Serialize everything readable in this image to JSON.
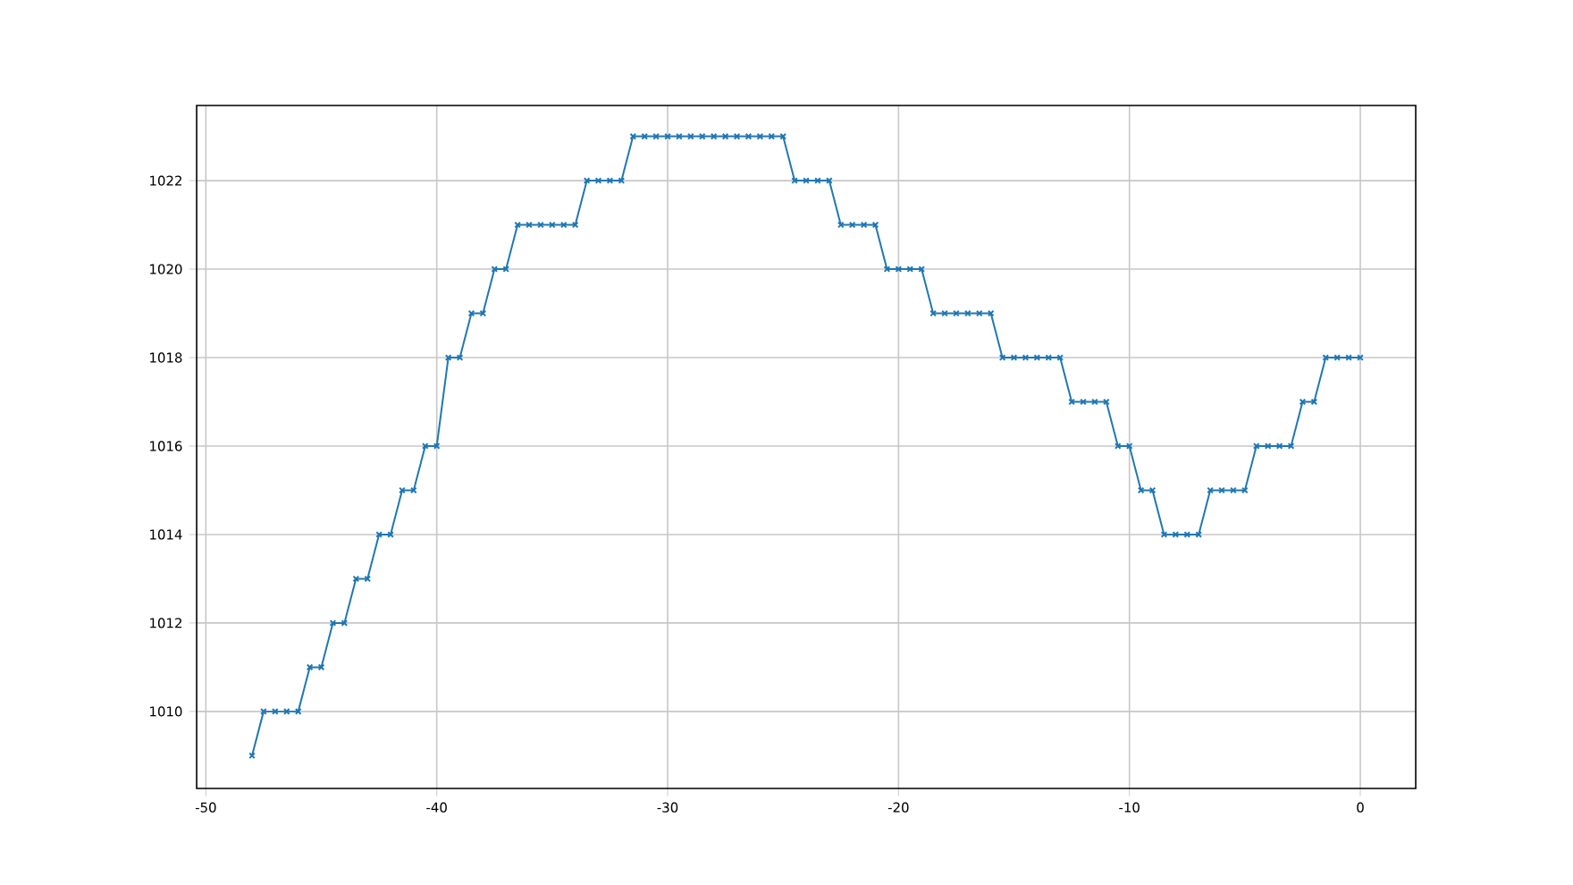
{
  "chart_data": {
    "type": "line",
    "x": [
      -48,
      -47.5,
      -47,
      -46.5,
      -46,
      -45.5,
      -45,
      -44.5,
      -44,
      -43.5,
      -43,
      -42.5,
      -42,
      -41.5,
      -41,
      -40.5,
      -40,
      -39.5,
      -39,
      -38.5,
      -38,
      -37.5,
      -37,
      -36.5,
      -36,
      -35.5,
      -35,
      -34.5,
      -34,
      -33.5,
      -33,
      -32.5,
      -32,
      -31.5,
      -31,
      -30.5,
      -30,
      -29.5,
      -29,
      -28.5,
      -28,
      -27.5,
      -27,
      -26.5,
      -26,
      -25.5,
      -25,
      -24.5,
      -24,
      -23.5,
      -23,
      -22.5,
      -22,
      -21.5,
      -21,
      -20.5,
      -20,
      -19.5,
      -19,
      -18.5,
      -18,
      -17.5,
      -17,
      -16.5,
      -16,
      -15.5,
      -15,
      -14.5,
      -14,
      -13.5,
      -13,
      -12.5,
      -12,
      -11.5,
      -11,
      -10.5,
      -10,
      -9.5,
      -9,
      -8.5,
      -8,
      -7.5,
      -7,
      -6.5,
      -6,
      -5.5,
      -5,
      -4.5,
      -4,
      -3.5,
      -3,
      -2.5,
      -2,
      -1.5,
      -1,
      -0.5,
      0
    ],
    "series": [
      {
        "color": "#1f77b4",
        "values": [
          1009,
          1010,
          1010,
          1010,
          1010,
          1011,
          1011,
          1012,
          1012,
          1013,
          1013,
          1014,
          1014,
          1015,
          1015,
          1016,
          1016,
          1018,
          1018,
          1019,
          1019,
          1020,
          1020,
          1021,
          1021,
          1021,
          1021,
          1021,
          1021,
          1022,
          1022,
          1022,
          1022,
          1023,
          1023,
          1023,
          1023,
          1023,
          1023,
          1023,
          1023,
          1023,
          1023,
          1023,
          1023,
          1023,
          1023,
          1022,
          1022,
          1022,
          1022,
          1021,
          1021,
          1021,
          1021,
          1020,
          1020,
          1020,
          1020,
          1019,
          1019,
          1019,
          1019,
          1019,
          1019,
          1018,
          1018,
          1018,
          1018,
          1018,
          1018,
          1017,
          1017,
          1017,
          1017,
          1016,
          1016,
          1015,
          1015,
          1014,
          1014,
          1014,
          1014,
          1015,
          1015,
          1015,
          1015,
          1016,
          1016,
          1016,
          1016,
          1017,
          1017,
          1018,
          1018,
          1018,
          1018
        ]
      }
    ],
    "xlim": [
      -50.4,
      2.4
    ],
    "ylim": [
      1008.26,
      1023.7
    ],
    "xticks": [
      -50,
      -40,
      -30,
      -20,
      -10,
      0
    ],
    "yticks": [
      1010,
      1012,
      1014,
      1016,
      1018,
      1020,
      1022
    ],
    "grid": true,
    "marker": "cross",
    "line_style": "solid"
  }
}
